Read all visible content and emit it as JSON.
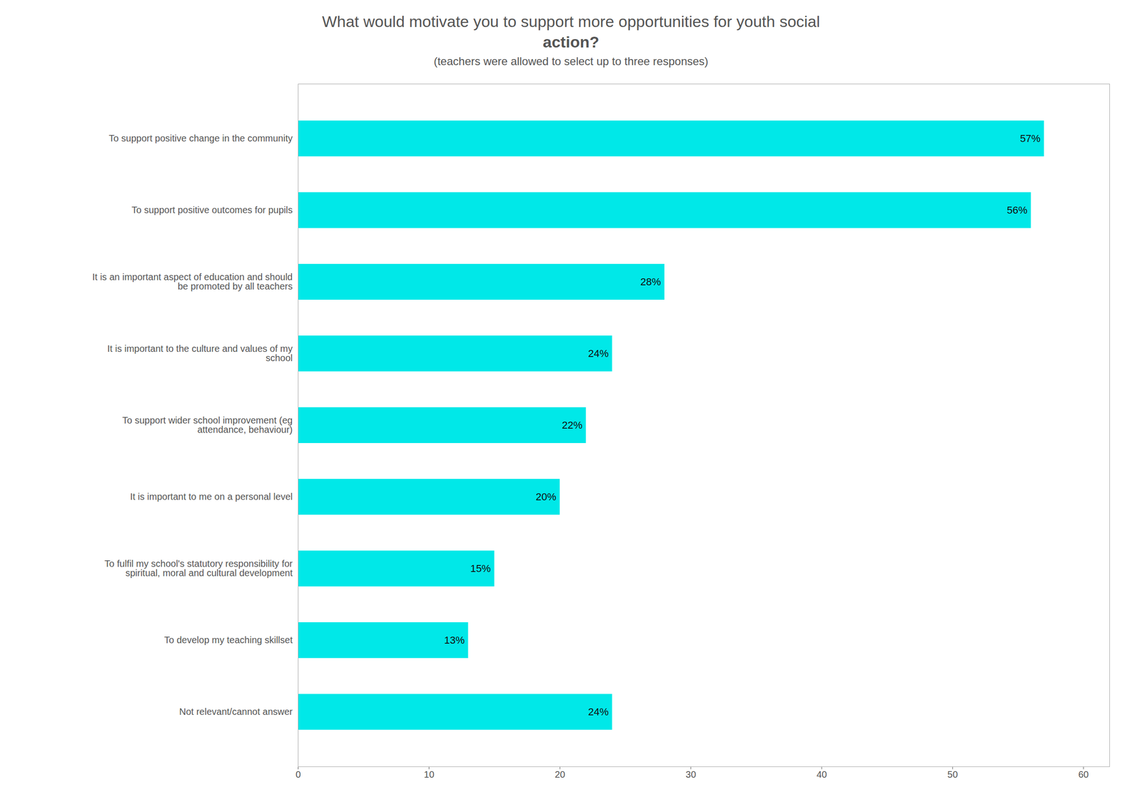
{
  "chart_data": {
    "type": "bar",
    "orientation": "horizontal",
    "title": "What would motivate you to support more opportunities for youth social\naction?",
    "subtitle": "(teachers were allowed to select up to three responses)",
    "categories": [
      "To support positive change in the community",
      "To support positive outcomes for pupils",
      "It is an important aspect of education and should\nbe promoted by all teachers",
      "It is important to the culture and values of my\nschool",
      "To support wider school improvement (eg\nattendance, behaviour)",
      "It is important to me on a personal level",
      "To fulfil my school's statutory responsibility for\nspiritual, moral and cultural development",
      "To develop my teaching skillset",
      "Not relevant/cannot answer"
    ],
    "values": [
      57,
      56,
      28,
      24,
      22,
      20,
      15,
      13,
      24
    ],
    "value_labels": [
      "57%",
      "56%",
      "28%",
      "24%",
      "22%",
      "20%",
      "15%",
      "13%",
      "24%"
    ],
    "color": "#00e8e8",
    "xlim": [
      0,
      62
    ],
    "xticks": [
      0,
      10,
      20,
      30,
      40,
      50,
      60
    ],
    "grid": false,
    "data_labels": true
  }
}
